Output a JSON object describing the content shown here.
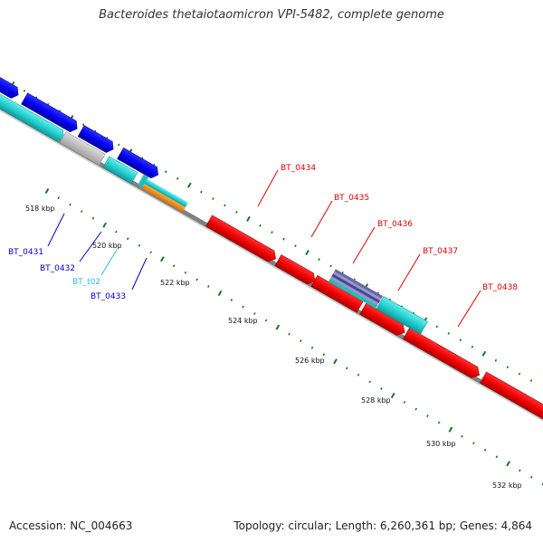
{
  "title": "Bacteroides thetaiotaomicron VPI-5482, complete genome",
  "footer": {
    "accession": "Accession: NC_004663",
    "summary": "Topology: circular; Length: 6,260,361 bp; Genes: 4,864"
  },
  "scale": {
    "ticks": [
      "518 kbp",
      "520 kbp",
      "522 kbp",
      "524 kbp",
      "526 kbp",
      "528 kbp",
      "530 kbp",
      "532 kbp"
    ]
  },
  "genes": [
    {
      "label": "BT_0431",
      "color": "#0000cc"
    },
    {
      "label": "BT_0432",
      "color": "#0000cc"
    },
    {
      "label": "BT_t02",
      "color": "#33bbee"
    },
    {
      "label": "BT_0433",
      "color": "#0000cc"
    },
    {
      "label": "BT_0434",
      "color": "#dd0000"
    },
    {
      "label": "BT_0435",
      "color": "#dd0000"
    },
    {
      "label": "BT_0436",
      "color": "#dd0000"
    },
    {
      "label": "BT_0437",
      "color": "#dd0000"
    },
    {
      "label": "BT_0438",
      "color": "#dd0000"
    }
  ],
  "colors": {
    "cds_forward": "#ff0000",
    "cds_reverse": "#0000ee",
    "trna": "#22cccc",
    "rrna": "#ff8800",
    "other": "#c0c0c0",
    "backbone": "#808080",
    "tick_dots": "#1a7a1a"
  }
}
